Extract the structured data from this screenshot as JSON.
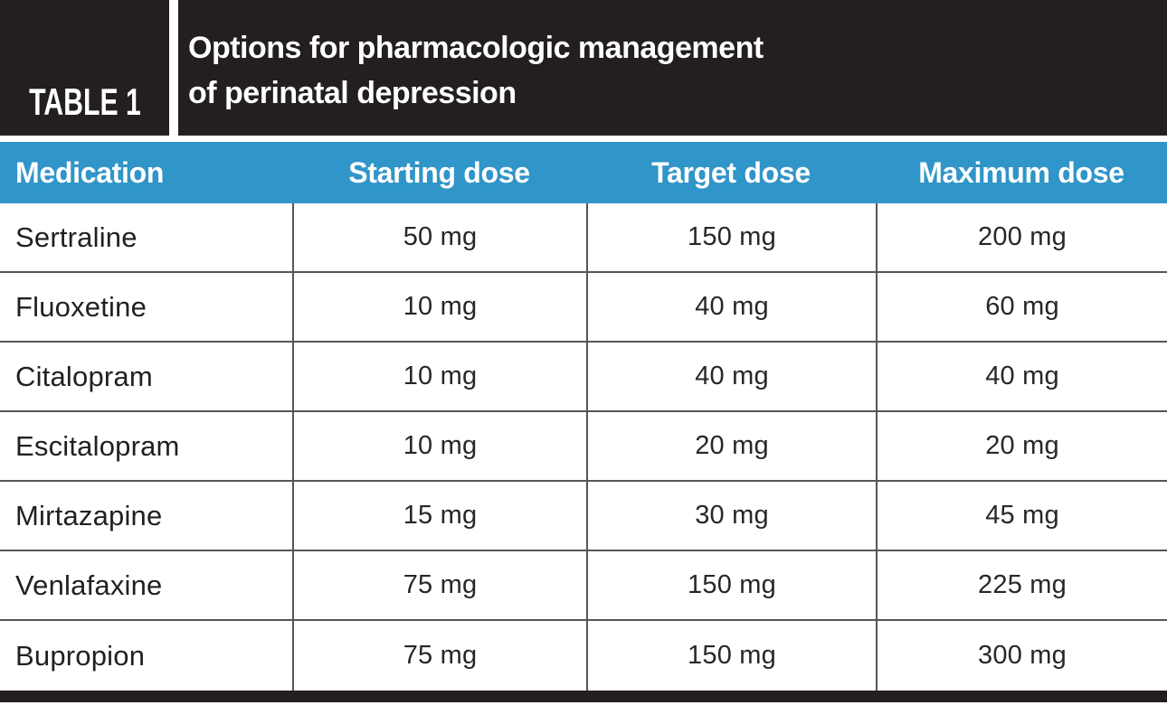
{
  "header": {
    "table_label": "TABLE 1",
    "title_line1": "Options for pharmacologic management",
    "title_line2": "of perinatal depression"
  },
  "chart_data": {
    "type": "table",
    "title": "Options for pharmacologic management of perinatal depression",
    "columns": [
      "Medication",
      "Starting dose",
      "Target dose",
      "Maximum dose"
    ],
    "rows": [
      [
        "Sertraline",
        "50 mg",
        "150 mg",
        "200 mg"
      ],
      [
        "Fluoxetine",
        "10 mg",
        "40 mg",
        "60 mg"
      ],
      [
        "Citalopram",
        "10 mg",
        "40 mg",
        "40 mg"
      ],
      [
        "Escitalopram",
        "10 mg",
        "20 mg",
        "20 mg"
      ],
      [
        "Mirtazapine",
        "15 mg",
        "30 mg",
        "45 mg"
      ],
      [
        "Venlafaxine",
        "75 mg",
        "150 mg",
        "225 mg"
      ],
      [
        "Bupropion",
        "75 mg",
        "150 mg",
        "300 mg"
      ]
    ]
  },
  "colors": {
    "banner_black": "#231f20",
    "header_blue": "#3095c8",
    "grid_line": "#55565a",
    "body_text": "#231f20",
    "header_text": "#ffffff"
  }
}
